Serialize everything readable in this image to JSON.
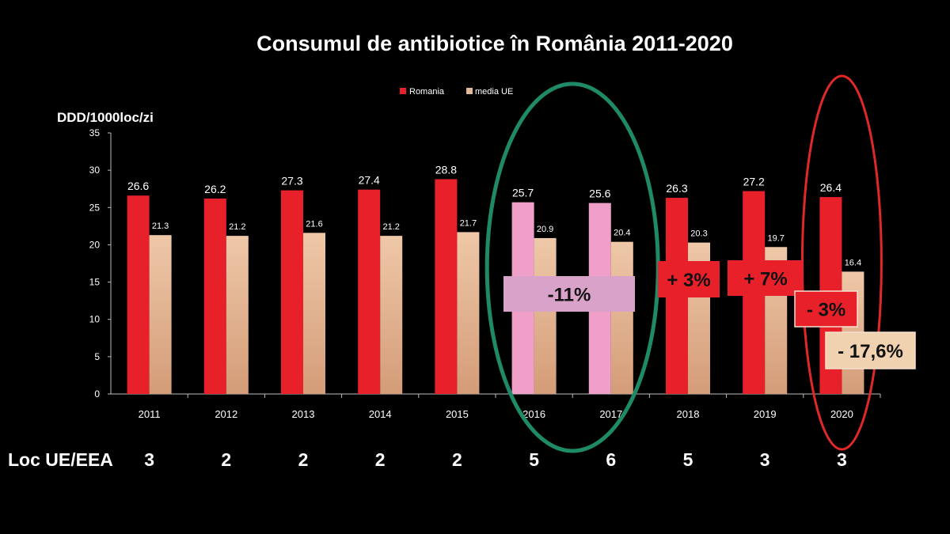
{
  "chart_data": {
    "type": "bar",
    "title": "Consumul de antibiotice în România 2011-2020",
    "ylabel": "DDD/1000loc/zi",
    "xlabel": "",
    "ylim": [
      0,
      35
    ],
    "yticks": [
      0,
      5,
      10,
      15,
      20,
      25,
      30,
      35
    ],
    "grid": false,
    "legend_position": "top-right",
    "categories": [
      "2011",
      "2012",
      "2013",
      "2014",
      "2015",
      "2016",
      "2017",
      "2018",
      "2019",
      "2020"
    ],
    "series": [
      {
        "name": "Romania",
        "color": "#e8202a",
        "highlight_color": "#f0a0c8",
        "highlighted": [
          "2016",
          "2017"
        ],
        "values": [
          26.6,
          26.2,
          27.3,
          27.4,
          28.8,
          25.7,
          25.6,
          26.3,
          27.2,
          26.4
        ]
      },
      {
        "name": "media UE",
        "color": "#e2b898",
        "values": [
          21.3,
          21.2,
          21.6,
          21.2,
          21.7,
          20.9,
          20.4,
          20.3,
          19.7,
          16.4
        ]
      }
    ],
    "annotations": [
      {
        "text": "-11%",
        "fill": "#d9a2c9"
      },
      {
        "text": "+ 3%",
        "fill": "#e8202a"
      },
      {
        "text": "+ 7%",
        "fill": "#e8202a"
      },
      {
        "text": "- 3%",
        "fill": "#e8202a"
      },
      {
        "text": "- 17,6%",
        "fill": "#f0d2b0"
      }
    ],
    "ellipses": [
      {
        "around": [
          "2016",
          "2017"
        ],
        "color": "#1e8a68"
      },
      {
        "around": [
          "2020"
        ],
        "color": "#e02828"
      }
    ],
    "rank_row": {
      "label": "Loc UE/EEA",
      "values": [
        "3",
        "2",
        "2",
        "2",
        "2",
        "5",
        "6",
        "5",
        "3",
        "3"
      ]
    }
  }
}
